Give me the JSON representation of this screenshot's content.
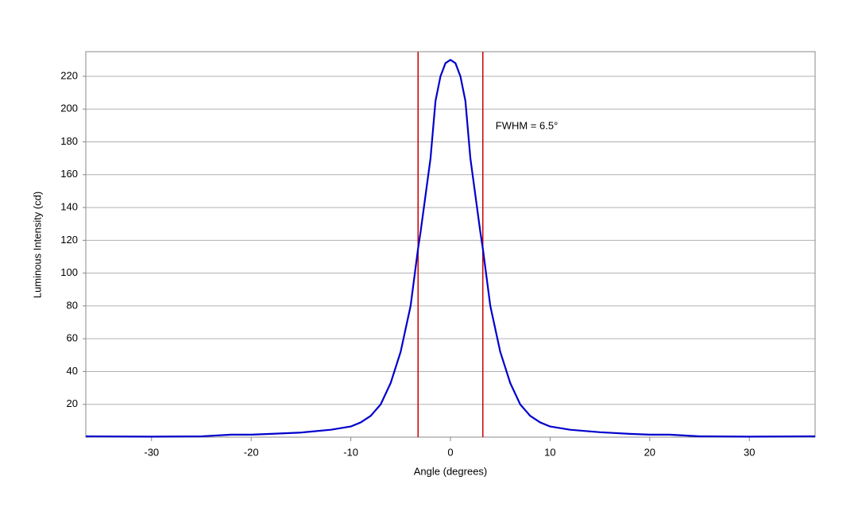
{
  "chart_data": {
    "type": "line",
    "x_label": "Angle (degrees)",
    "y_label": "Luminous Intensity (cd)",
    "x": [
      -36.6,
      -30,
      -25,
      -22,
      -20,
      -18,
      -15,
      -12,
      -10,
      -9,
      -8,
      -7,
      -6,
      -5,
      -4,
      -3.25,
      -3,
      -2,
      -1.5,
      -1,
      -0.5,
      0,
      0.5,
      1,
      1.5,
      2,
      3,
      3.25,
      4,
      5,
      6,
      7,
      8,
      9,
      10,
      12,
      15,
      18,
      20,
      22,
      25,
      30,
      36.6
    ],
    "series": [
      {
        "color": "#0000cc",
        "values": [
          0.5,
          0.3,
          0.5,
          1.5,
          1.5,
          2,
          2.8,
          4.5,
          6.5,
          9,
          13,
          20,
          33,
          52,
          80,
          115,
          125,
          170,
          205,
          220,
          228,
          230,
          228,
          220,
          205,
          170,
          125,
          115,
          80,
          52,
          33,
          20,
          13,
          9,
          6.5,
          4.5,
          3,
          2,
          1.5,
          1.5,
          0.5,
          0.3,
          0.5
        ]
      }
    ],
    "vlines": [
      -3.25,
      3.25
    ],
    "vline_color": "#cc0000",
    "annotation": "FWHM = 6.5°",
    "xlim": [
      -36.6,
      36.6
    ],
    "ylim": [
      0,
      235
    ],
    "xticks": [
      -30,
      -20,
      -10,
      0,
      10,
      20,
      30
    ],
    "yticks": [
      20,
      40,
      60,
      80,
      100,
      120,
      140,
      160,
      180,
      200,
      220
    ],
    "grid": true
  }
}
